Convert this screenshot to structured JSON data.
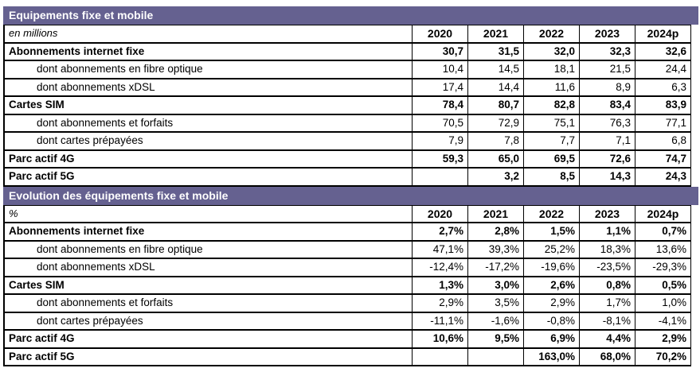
{
  "colors": {
    "header_bg": "#656190",
    "header_text": "#ffffff",
    "border": "#000000"
  },
  "chart_data": [
    {
      "type": "table",
      "title": "Equipements fixe et mobile",
      "unit": "en millions",
      "columns": [
        "2020",
        "2021",
        "2022",
        "2023",
        "2024p"
      ],
      "value_suffix": "",
      "rows": [
        {
          "label": "Abonnements internet fixe",
          "level": 0,
          "values": [
            30.7,
            31.5,
            32.0,
            32.3,
            32.6
          ]
        },
        {
          "label": "dont abonnements en fibre optique",
          "level": 1,
          "values": [
            10.4,
            14.5,
            18.1,
            21.5,
            24.4
          ]
        },
        {
          "label": "dont abonnements xDSL",
          "level": 1,
          "values": [
            17.4,
            14.4,
            11.6,
            8.9,
            6.3
          ]
        },
        {
          "label": "Cartes SIM",
          "level": 0,
          "values": [
            78.4,
            80.7,
            82.8,
            83.4,
            83.9
          ]
        },
        {
          "label": "dont abonnements et forfaits",
          "level": 1,
          "values": [
            70.5,
            72.9,
            75.1,
            76.3,
            77.1
          ]
        },
        {
          "label": "dont cartes prépayées",
          "level": 1,
          "values": [
            7.9,
            7.8,
            7.7,
            7.1,
            6.8
          ]
        },
        {
          "label": "Parc actif 4G",
          "level": 0,
          "values": [
            59.3,
            65.0,
            69.5,
            72.6,
            74.7
          ]
        },
        {
          "label": "Parc actif 5G",
          "level": 0,
          "values": [
            null,
            3.2,
            8.5,
            14.3,
            24.3
          ]
        }
      ]
    },
    {
      "type": "table",
      "title": "Evolution des équipements fixe et mobile",
      "unit": "%",
      "columns": [
        "2020",
        "2021",
        "2022",
        "2023",
        "2024p"
      ],
      "value_suffix": "%",
      "rows": [
        {
          "label": "Abonnements internet fixe",
          "level": 0,
          "values": [
            2.7,
            2.8,
            1.5,
            1.1,
            0.7
          ]
        },
        {
          "label": "dont abonnements en fibre optique",
          "level": 1,
          "values": [
            47.1,
            39.3,
            25.2,
            18.3,
            13.6
          ]
        },
        {
          "label": "dont abonnements xDSL",
          "level": 1,
          "values": [
            -12.4,
            -17.2,
            -19.6,
            -23.5,
            -29.3
          ]
        },
        {
          "label": "Cartes SIM",
          "level": 0,
          "values": [
            1.3,
            3.0,
            2.6,
            0.8,
            0.5
          ]
        },
        {
          "label": "dont abonnements et forfaits",
          "level": 1,
          "values": [
            2.9,
            3.5,
            2.9,
            1.7,
            1.0
          ]
        },
        {
          "label": "dont cartes prépayées",
          "level": 1,
          "values": [
            -11.1,
            -1.6,
            -0.8,
            -8.1,
            -4.1
          ]
        },
        {
          "label": "Parc actif 4G",
          "level": 0,
          "values": [
            10.6,
            9.5,
            6.9,
            4.4,
            2.9
          ]
        },
        {
          "label": "Parc actif 5G",
          "level": 0,
          "values": [
            null,
            null,
            163.0,
            68.0,
            70.2
          ]
        }
      ]
    }
  ]
}
